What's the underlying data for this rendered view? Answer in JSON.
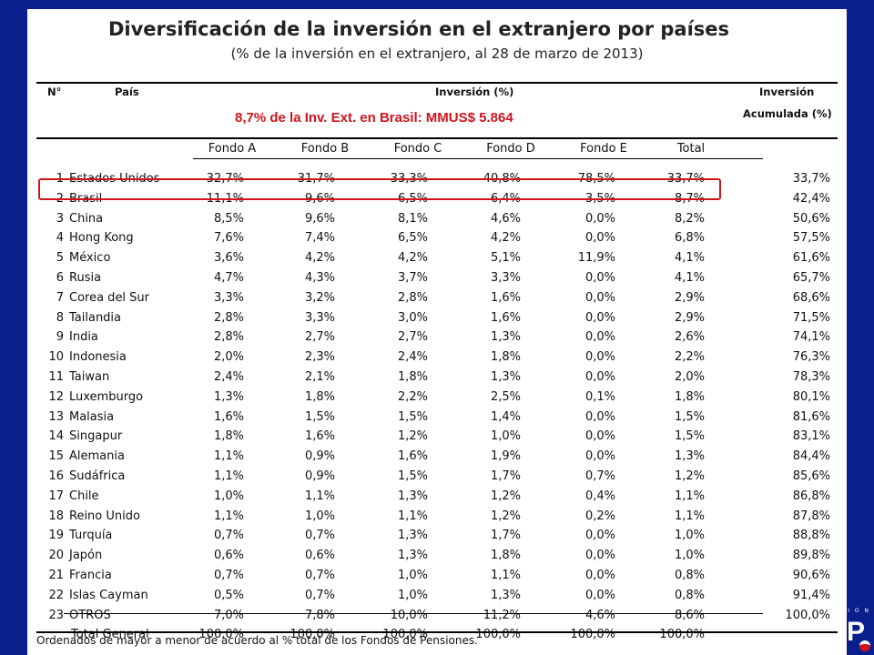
{
  "title": "Diversificación de la inversión en el extranjero por países",
  "subtitle": "(% de la inversión en el extranjero, al 28 de marzo de 2013)",
  "headers": {
    "num": "N°",
    "country": "País",
    "investment": "Inversión (%)",
    "cumulative_1": "Inversión",
    "cumulative_2": "Acumulada (%)",
    "funds": [
      "Fondo A",
      "Fondo B",
      "Fondo C",
      "Fondo D",
      "Fondo E",
      "Total"
    ]
  },
  "note": "8,7% de la Inv. Ext. en Brasil: MMUS$ 5.864",
  "footnote": "Ordenados de mayor a menor de acuerdo al % total de los Fondos de Pensiones.",
  "logo_text": "I O N",
  "logo_letter": "P",
  "colors": {
    "background": "#0a1e8c",
    "highlight": "#d0141c"
  },
  "chart_data": {
    "type": "table",
    "title": "Diversificación de la inversión en el extranjero por países",
    "subtitle": "(% de la inversión en el extranjero, al 28 de marzo de 2013)",
    "columns": [
      "N°",
      "País",
      "Fondo A",
      "Fondo B",
      "Fondo C",
      "Fondo D",
      "Fondo E",
      "Total",
      "Inversión Acumulada (%)"
    ],
    "rows": [
      [
        "1",
        "Estados Unidos",
        "32,7%",
        "31,7%",
        "33,3%",
        "40,8%",
        "78,5%",
        "33,7%",
        "33,7%"
      ],
      [
        "2",
        "Brasil",
        "11,1%",
        "9,6%",
        "6,5%",
        "6,4%",
        "3,5%",
        "8,7%",
        "42,4%"
      ],
      [
        "3",
        "China",
        "8,5%",
        "9,6%",
        "8,1%",
        "4,6%",
        "0,0%",
        "8,2%",
        "50,6%"
      ],
      [
        "4",
        "Hong Kong",
        "7,6%",
        "7,4%",
        "6,5%",
        "4,2%",
        "0,0%",
        "6,8%",
        "57,5%"
      ],
      [
        "5",
        "México",
        "3,6%",
        "4,2%",
        "4,2%",
        "5,1%",
        "11,9%",
        "4,1%",
        "61,6%"
      ],
      [
        "6",
        "Rusia",
        "4,7%",
        "4,3%",
        "3,7%",
        "3,3%",
        "0,0%",
        "4,1%",
        "65,7%"
      ],
      [
        "7",
        "Corea del Sur",
        "3,3%",
        "3,2%",
        "2,8%",
        "1,6%",
        "0,0%",
        "2,9%",
        "68,6%"
      ],
      [
        "8",
        "Tailandia",
        "2,8%",
        "3,3%",
        "3,0%",
        "1,6%",
        "0,0%",
        "2,9%",
        "71,5%"
      ],
      [
        "9",
        "India",
        "2,8%",
        "2,7%",
        "2,7%",
        "1,3%",
        "0,0%",
        "2,6%",
        "74,1%"
      ],
      [
        "10",
        "Indonesia",
        "2,0%",
        "2,3%",
        "2,4%",
        "1,8%",
        "0,0%",
        "2,2%",
        "76,3%"
      ],
      [
        "11",
        "Taiwan",
        "2,4%",
        "2,1%",
        "1,8%",
        "1,3%",
        "0,0%",
        "2,0%",
        "78,3%"
      ],
      [
        "12",
        "Luxemburgo",
        "1,3%",
        "1,8%",
        "2,2%",
        "2,5%",
        "0,1%",
        "1,8%",
        "80,1%"
      ],
      [
        "13",
        "Malasia",
        "1,6%",
        "1,5%",
        "1,5%",
        "1,4%",
        "0,0%",
        "1,5%",
        "81,6%"
      ],
      [
        "14",
        "Singapur",
        "1,8%",
        "1,6%",
        "1,2%",
        "1,0%",
        "0,0%",
        "1,5%",
        "83,1%"
      ],
      [
        "15",
        "Alemania",
        "1,1%",
        "0,9%",
        "1,6%",
        "1,9%",
        "0,0%",
        "1,3%",
        "84,4%"
      ],
      [
        "16",
        "Sudáfrica",
        "1,1%",
        "0,9%",
        "1,5%",
        "1,7%",
        "0,7%",
        "1,2%",
        "85,6%"
      ],
      [
        "17",
        "Chile",
        "1,0%",
        "1,1%",
        "1,3%",
        "1,2%",
        "0,4%",
        "1,1%",
        "86,8%"
      ],
      [
        "18",
        "Reino Unido",
        "1,1%",
        "1,0%",
        "1,1%",
        "1,2%",
        "0,2%",
        "1,1%",
        "87,8%"
      ],
      [
        "19",
        "Turquía",
        "0,7%",
        "0,7%",
        "1,3%",
        "1,7%",
        "0,0%",
        "1,0%",
        "88,8%"
      ],
      [
        "20",
        "Japón",
        "0,6%",
        "0,6%",
        "1,3%",
        "1,8%",
        "0,0%",
        "1,0%",
        "89,8%"
      ],
      [
        "21",
        "Francia",
        "0,7%",
        "0,7%",
        "1,0%",
        "1,1%",
        "0,0%",
        "0,8%",
        "90,6%"
      ],
      [
        "22",
        "Islas Cayman",
        "0,5%",
        "0,7%",
        "1,0%",
        "1,3%",
        "0,0%",
        "0,8%",
        "91,4%"
      ],
      [
        "23",
        "OTROS",
        "7,0%",
        "7,8%",
        "10,0%",
        "11,2%",
        "4,6%",
        "8,6%",
        "100,0%"
      ],
      [
        "",
        "Total General",
        "100,0%",
        "100,0%",
        "100,0%",
        "100,0%",
        "100,0%",
        "100,0%",
        ""
      ]
    ],
    "highlighted_row": "Brasil"
  }
}
